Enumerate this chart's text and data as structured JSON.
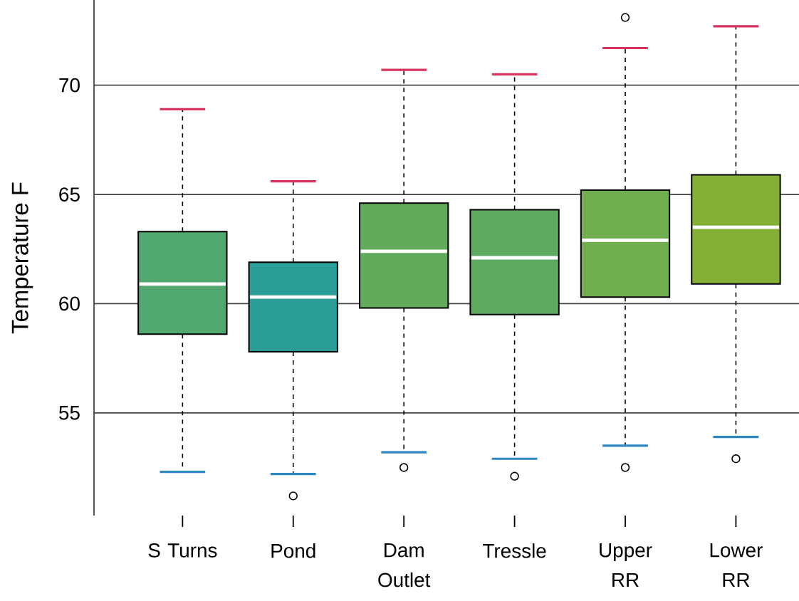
{
  "chart_data": {
    "type": "box",
    "ylabel": "Temperature F",
    "categories": [
      "S Turns",
      "Pond",
      "Dam Outlet",
      "Tressle",
      "Upper RR",
      "Lower RR"
    ],
    "boxes": [
      {
        "low": 52.3,
        "q1": 58.6,
        "median": 60.9,
        "q3": 63.3,
        "high": 68.9
      },
      {
        "low": 52.2,
        "q1": 57.8,
        "median": 60.3,
        "q3": 61.9,
        "high": 65.6,
        "outliers": [
          51.2
        ]
      },
      {
        "low": 53.2,
        "q1": 59.8,
        "median": 62.4,
        "q3": 64.6,
        "high": 70.7,
        "outliers": [
          52.5
        ]
      },
      {
        "low": 52.9,
        "q1": 59.5,
        "median": 62.1,
        "q3": 64.3,
        "high": 70.5,
        "outliers": [
          52.1
        ]
      },
      {
        "low": 53.5,
        "q1": 60.3,
        "median": 62.9,
        "q3": 65.2,
        "high": 71.7,
        "outliers": [
          52.5,
          73.1
        ]
      },
      {
        "low": 53.9,
        "q1": 60.9,
        "median": 63.5,
        "q3": 65.9,
        "high": 72.7,
        "outliers": [
          52.9
        ]
      }
    ],
    "colors": [
      "#50a86e",
      "#2a9e96",
      "#62ab5c",
      "#5eaa60",
      "#70ae50",
      "#84b038"
    ],
    "ylim": [
      50.3,
      73.9
    ],
    "yticks": [
      55,
      60,
      65,
      70
    ],
    "grid": "y",
    "marker": "circle"
  }
}
